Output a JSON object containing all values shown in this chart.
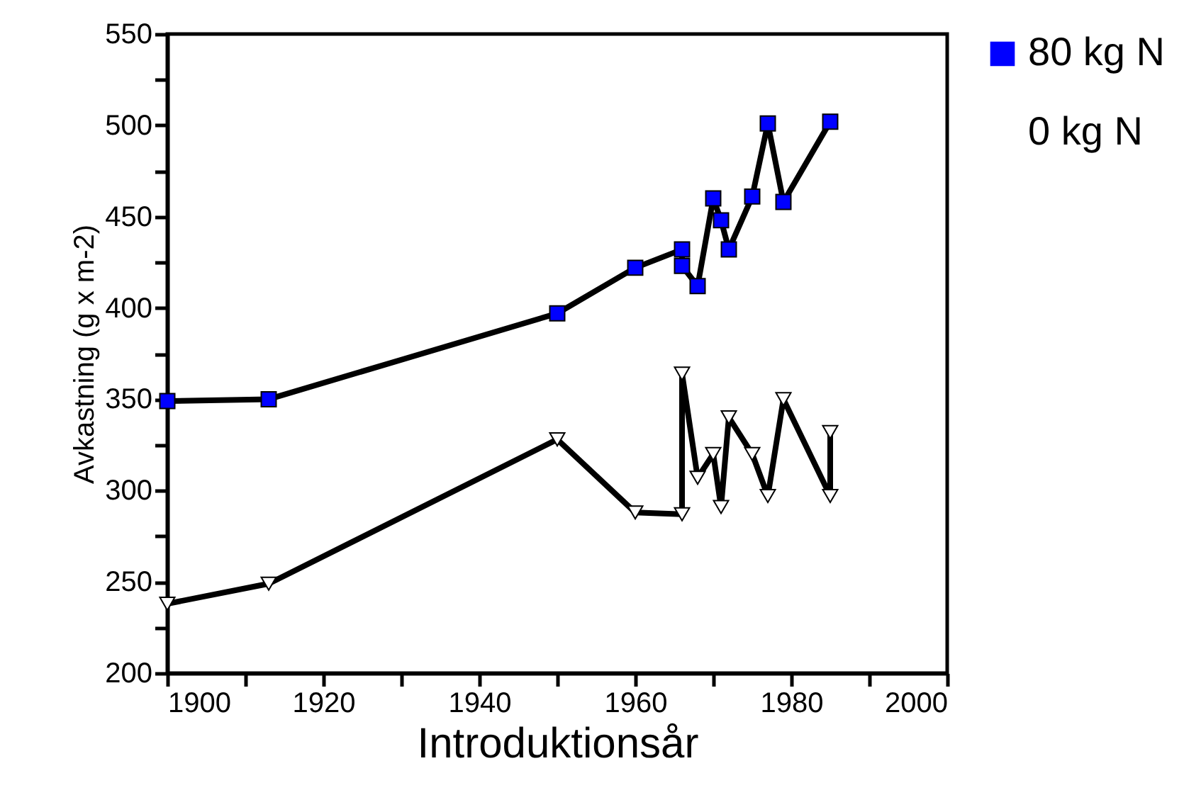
{
  "chart_data": {
    "type": "line",
    "xlabel": "Introduktionsår",
    "ylabel": "Avkastning (g x m-2)",
    "legend": "right",
    "grid": false,
    "xlim": [
      1900,
      2000
    ],
    "xticks": [
      1900,
      {
        "value": 1910,
        "label": null
      },
      1920,
      {
        "value": 1930,
        "label": null
      },
      1940,
      {
        "value": 1950,
        "label": null
      },
      1960,
      {
        "value": 1970,
        "label": null
      },
      1980,
      {
        "value": 1990,
        "label": null
      },
      2000
    ],
    "ylim": [
      200,
      550
    ],
    "yticks": [
      200,
      {
        "value": 225,
        "label": null
      },
      250,
      {
        "value": 275,
        "label": null
      },
      300,
      {
        "value": 325,
        "label": null
      },
      350,
      {
        "value": 375,
        "label": null
      },
      400,
      {
        "value": 425,
        "label": null
      },
      450,
      {
        "value": 475,
        "label": null
      },
      500,
      {
        "value": 525,
        "label": null
      },
      550
    ],
    "series": [
      {
        "name": "80 kg N",
        "color": "#0000ff",
        "marker": "square",
        "line_style": "solid",
        "x": [
          1900,
          1913,
          1950,
          1960,
          1966,
          1966,
          1968,
          1970,
          1971,
          1972,
          1975,
          1977,
          1979,
          1985
        ],
        "values": [
          349,
          350,
          397,
          422,
          432,
          423,
          412,
          460,
          448,
          432,
          461,
          501,
          458,
          502
        ]
      },
      {
        "name": "0 kg N",
        "color": "#ffffff",
        "marker": "triangle",
        "line_style": "solid",
        "x": [
          1900,
          1913,
          1950,
          1960,
          1966,
          1966,
          1968,
          1970,
          1971,
          1972,
          1975,
          1977,
          1979,
          1985,
          1985
        ],
        "values": [
          238,
          249,
          328,
          288,
          287,
          364,
          307,
          320,
          291,
          340,
          320,
          297,
          350,
          297,
          332
        ]
      }
    ]
  }
}
